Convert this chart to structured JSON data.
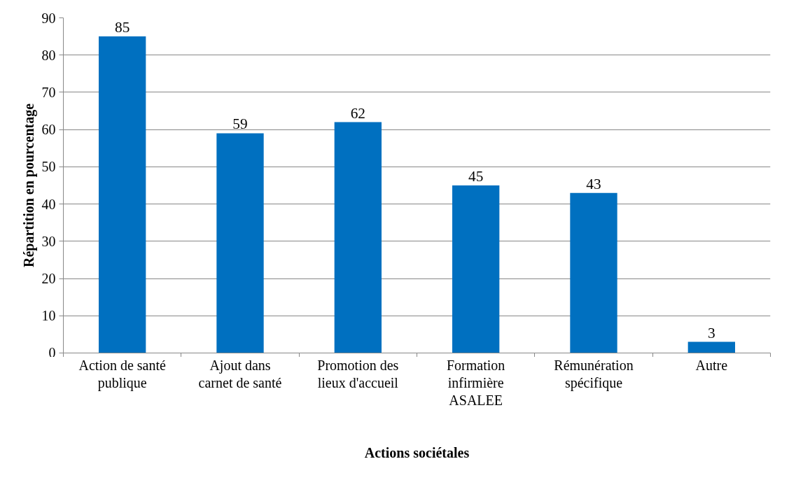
{
  "chart_data": {
    "type": "bar",
    "xlabel": "Actions sociétales",
    "ylabel": "Répartition en pourcentage",
    "categories": [
      "Action de santé publique",
      "Ajout dans carnet de santé",
      "Promotion des lieux d'accueil",
      "Formation infirmière ASALEE",
      "Rémunération spécifique",
      "Autre"
    ],
    "values": [
      85,
      59,
      62,
      45,
      43,
      3
    ],
    "color": "#0070c0",
    "ylim": [
      0,
      90
    ],
    "yticks": [
      0,
      10,
      20,
      30,
      40,
      50,
      60,
      70,
      80,
      90
    ],
    "grid": "y",
    "data_labels": true
  }
}
